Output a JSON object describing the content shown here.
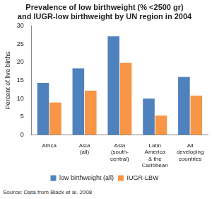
{
  "chart_data": {
    "type": "bar",
    "title": [
      "Prevalence of low birthweight (% <2500 gr)",
      "and IUGR-low birthweight by UN region in 2004"
    ],
    "y_label": "Percent of live births",
    "categories": [
      [
        "Africa"
      ],
      [
        "Asia",
        "(all)"
      ],
      [
        "Asia",
        "(south-",
        "central)"
      ],
      [
        "Latin",
        "America",
        "& the",
        "Caribbean"
      ],
      [
        "All",
        "developing",
        "countries"
      ]
    ],
    "series": [
      {
        "name": "low birthweight (all)",
        "color": "#4f81bd",
        "values": [
          14.3,
          18.3,
          27.1,
          10.0,
          15.9
        ]
      },
      {
        "name": "IUGR-LBW",
        "color": "#f79646",
        "values": [
          8.9,
          12.2,
          19.8,
          5.3,
          10.8
        ]
      }
    ],
    "ylim": [
      0,
      30
    ],
    "yticks": [
      0,
      5,
      10,
      15,
      20,
      25,
      30
    ],
    "grid": false,
    "legend": "bottom",
    "annotation": "Source: Data from Black et al. 2008"
  }
}
